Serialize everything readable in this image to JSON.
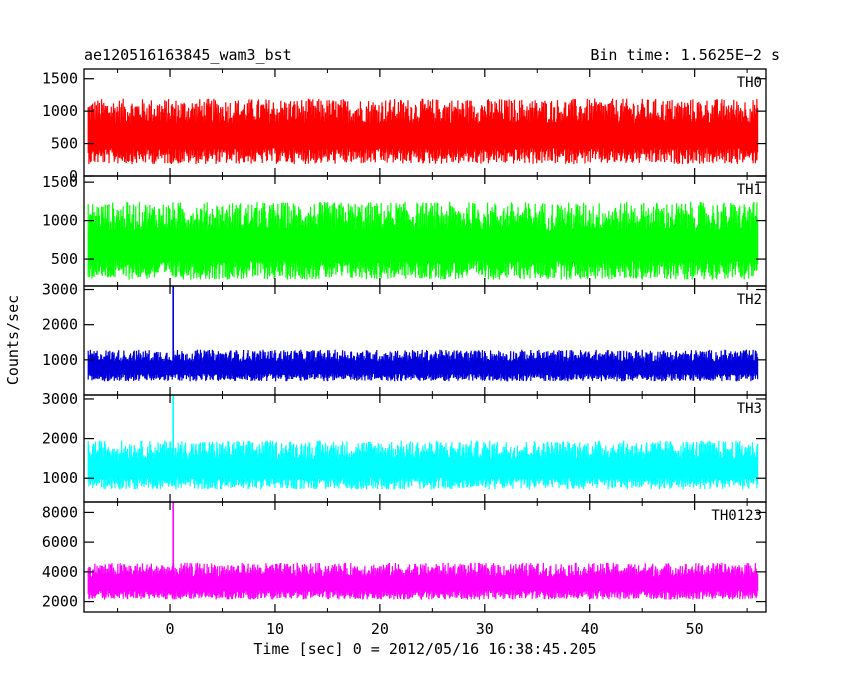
{
  "chart_data": {
    "type": "line",
    "title_left": "ae120516163845_wam3_bst",
    "title_right": "Bin time: 1.5625E−2 s",
    "xlabel": "Time [sec] 0 = 2012/05/16 16:38:45.205",
    "ylabel": "Counts/sec",
    "xlim": [
      -8.2,
      56.8
    ],
    "x_data_range": [
      -7.8,
      56.0
    ],
    "x_ticks": [
      0,
      10,
      20,
      30,
      40,
      50
    ],
    "x_tick_labels": [
      "0",
      "10",
      "20",
      "30",
      "40",
      "50"
    ],
    "grid": false,
    "legend": "none",
    "panels": [
      {
        "name": "TH0",
        "color": "#ff0000",
        "ylim": [
          0,
          1650
        ],
        "y_ticks": [
          0,
          500,
          1000,
          1500
        ],
        "y_tick_labels": [
          "0",
          "500",
          "1000",
          "1500"
        ],
        "base_level": 700,
        "noise_amplitude": 450,
        "peak_max": 1650,
        "spikes": []
      },
      {
        "name": "TH1",
        "color": "#00ff00",
        "ylim": [
          150,
          1580
        ],
        "y_ticks": [
          500,
          1000,
          1500
        ],
        "y_tick_labels": [
          "500",
          "1000",
          "1500"
        ],
        "base_level": 750,
        "noise_amplitude": 450,
        "peak_max": 1580,
        "spikes": []
      },
      {
        "name": "TH2",
        "color": "#0000dd",
        "ylim": [
          0,
          3100
        ],
        "y_ticks": [
          1000,
          2000,
          3000
        ],
        "y_tick_labels": [
          "1000",
          "2000",
          "3000"
        ],
        "base_level": 850,
        "noise_amplitude": 400,
        "peak_max": 2200,
        "spikes": [
          {
            "x": 0.3,
            "y": 3100
          }
        ]
      },
      {
        "name": "TH3",
        "color": "#00ffff",
        "ylim": [
          400,
          3100
        ],
        "y_ticks": [
          1000,
          2000,
          3000
        ],
        "y_tick_labels": [
          "1000",
          "2000",
          "3000"
        ],
        "base_level": 1350,
        "noise_amplitude": 550,
        "peak_max": 2900,
        "spikes": [
          {
            "x": 0.3,
            "y": 3100
          }
        ]
      },
      {
        "name": "TH0123",
        "color": "#ff00ff",
        "ylim": [
          1300,
          8700
        ],
        "y_ticks": [
          2000,
          4000,
          6000,
          8000
        ],
        "y_tick_labels": [
          "2000",
          "4000",
          "6000",
          "8000"
        ],
        "base_level": 3400,
        "noise_amplitude": 1100,
        "peak_max": 5800,
        "spikes": [
          {
            "x": 0.3,
            "y": 8700
          }
        ]
      }
    ]
  }
}
